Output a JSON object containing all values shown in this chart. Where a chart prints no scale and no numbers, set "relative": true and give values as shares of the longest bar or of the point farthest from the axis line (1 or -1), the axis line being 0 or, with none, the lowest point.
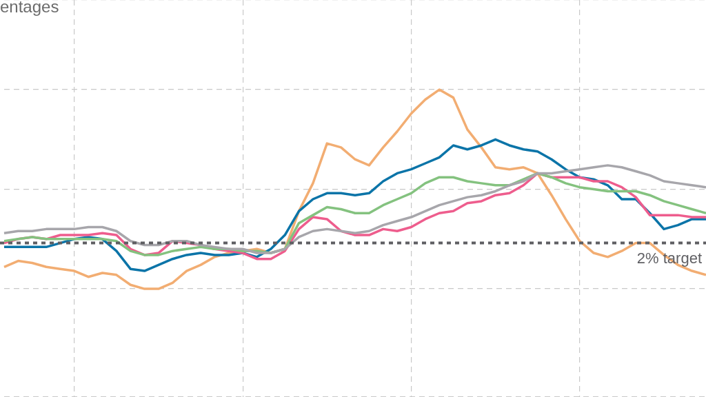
{
  "chart_data": {
    "type": "line",
    "title": "entages",
    "relative": true,
    "grid": true,
    "legend": false,
    "marker": "none",
    "line_style": "solid",
    "categories": [
      null,
      null,
      null,
      null,
      null,
      null,
      null,
      null,
      null,
      null,
      null,
      null,
      null,
      null,
      null,
      null,
      null,
      null,
      null,
      null,
      null,
      null,
      null,
      null,
      null,
      null,
      null,
      null,
      null,
      null,
      null,
      null,
      null,
      null,
      null,
      null,
      null,
      null,
      null,
      null,
      null,
      null,
      null,
      null,
      null,
      null,
      null,
      null,
      null,
      null,
      null
    ],
    "series": [
      {
        "color": "#a7a6ab",
        "values": [
          0.28,
          0.29,
          0.29,
          0.3,
          0.3,
          0.3,
          0.31,
          0.31,
          0.29,
          0.24,
          0.22,
          0.22,
          0.24,
          0.24,
          0.22,
          0.21,
          0.2,
          0.2,
          0.18,
          0.18,
          0.2,
          0.26,
          0.29,
          0.3,
          0.29,
          0.28,
          0.29,
          0.32,
          0.34,
          0.36,
          0.39,
          0.42,
          0.44,
          0.46,
          0.47,
          0.49,
          0.52,
          0.54,
          0.58,
          0.58,
          0.59,
          0.6,
          0.61,
          0.62,
          0.61,
          0.59,
          0.57,
          0.54,
          0.53,
          0.52,
          0.51
        ]
      },
      {
        "color": "#84c27f",
        "values": [
          0.24,
          0.25,
          0.26,
          0.25,
          0.25,
          0.25,
          0.25,
          0.25,
          0.24,
          0.19,
          0.17,
          0.17,
          0.19,
          0.2,
          0.21,
          0.2,
          0.2,
          0.19,
          0.19,
          0.18,
          0.2,
          0.33,
          0.37,
          0.41,
          0.4,
          0.38,
          0.38,
          0.42,
          0.45,
          0.48,
          0.53,
          0.56,
          0.56,
          0.54,
          0.53,
          0.52,
          0.52,
          0.55,
          0.58,
          0.56,
          0.53,
          0.51,
          0.5,
          0.49,
          0.49,
          0.49,
          0.47,
          0.44,
          0.42,
          0.4,
          0.38
        ]
      },
      {
        "color": "#ee5d8d",
        "values": [
          0.23,
          0.25,
          0.26,
          0.25,
          0.27,
          0.27,
          0.27,
          0.28,
          0.27,
          0.2,
          0.17,
          0.18,
          0.24,
          0.23,
          0.22,
          0.2,
          0.19,
          0.18,
          0.15,
          0.15,
          0.19,
          0.3,
          0.36,
          0.35,
          0.29,
          0.27,
          0.27,
          0.3,
          0.29,
          0.31,
          0.35,
          0.38,
          0.39,
          0.43,
          0.44,
          0.47,
          0.48,
          0.52,
          0.58,
          0.56,
          0.56,
          0.56,
          0.54,
          0.54,
          0.51,
          0.46,
          0.37,
          0.37,
          0.37,
          0.36,
          0.36
        ]
      },
      {
        "color": "#0b74a8",
        "values": [
          0.21,
          0.21,
          0.21,
          0.21,
          0.23,
          0.25,
          0.26,
          0.25,
          0.19,
          0.1,
          0.09,
          0.12,
          0.15,
          0.17,
          0.18,
          0.17,
          0.17,
          0.18,
          0.16,
          0.2,
          0.27,
          0.39,
          0.45,
          0.48,
          0.48,
          0.47,
          0.48,
          0.54,
          0.58,
          0.6,
          0.63,
          0.66,
          0.72,
          0.7,
          0.72,
          0.75,
          0.72,
          0.7,
          0.69,
          0.65,
          0.6,
          0.56,
          0.55,
          0.52,
          0.45,
          0.45,
          0.38,
          0.3,
          0.32,
          0.35,
          0.35
        ]
      },
      {
        "color": "#f2ad72",
        "values": [
          0.11,
          0.14,
          0.13,
          0.11,
          0.1,
          0.09,
          0.06,
          0.08,
          0.07,
          0.02,
          0.0,
          0,
          0.03,
          0.09,
          0.12,
          0.16,
          0.18,
          0.19,
          0.2,
          0.18,
          0.2,
          0.39,
          0.53,
          0.73,
          0.71,
          0.65,
          0.62,
          0.71,
          0.79,
          0.88,
          0.95,
          1,
          0.96,
          0.8,
          0.71,
          0.61,
          0.6,
          0.61,
          0.58,
          0.47,
          0.35,
          0.24,
          0.18,
          0.16,
          0.19,
          0.23,
          0.23,
          0.17,
          0.12,
          0.09,
          0.07
        ]
      }
    ],
    "ref_lines": [
      {
        "axis": "y",
        "value": 0.23,
        "label": "2% target",
        "color": "#5f5f63",
        "line_style": "dotted"
      }
    ]
  }
}
